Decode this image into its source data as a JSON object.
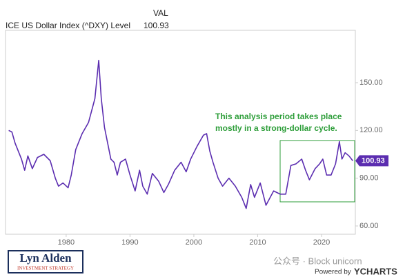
{
  "chart_data": {
    "type": "line",
    "column_label": "VAL",
    "title": "ICE US Dollar Index (^DXY) Level",
    "x": [
      1971.0,
      1971.5,
      1972.0,
      1973.0,
      1973.5,
      1974.0,
      1974.7,
      1975.5,
      1976.5,
      1977.5,
      1978.3,
      1978.8,
      1979.5,
      1980.3,
      1980.8,
      1981.5,
      1982.5,
      1983.5,
      1984.5,
      1985.1,
      1985.5,
      1986.0,
      1986.5,
      1987.0,
      1987.5,
      1988.0,
      1988.5,
      1989.3,
      1990.0,
      1990.8,
      1991.5,
      1992.0,
      1992.7,
      1993.5,
      1994.5,
      1995.3,
      1996.0,
      1997.0,
      1998.0,
      1998.8,
      1999.5,
      2000.5,
      2001.5,
      2002.0,
      2002.5,
      2003.0,
      2003.8,
      2004.5,
      2005.5,
      2006.5,
      2007.5,
      2008.2,
      2008.9,
      2009.5,
      2010.4,
      2011.3,
      2012.5,
      2013.5,
      2014.4,
      2015.2,
      2016.0,
      2016.9,
      2017.5,
      2018.1,
      2019.0,
      2019.7,
      2020.2,
      2020.8,
      2021.5,
      2022.2,
      2022.8,
      2023.2,
      2023.7,
      2024.3,
      2024.9
    ],
    "values": [
      120,
      119,
      112,
      102,
      95,
      104,
      96,
      103,
      105,
      101,
      90,
      85,
      87,
      84,
      92,
      108,
      118,
      125,
      140,
      164,
      140,
      122,
      112,
      102,
      100,
      92,
      100,
      102,
      92,
      82,
      95,
      85,
      80,
      93,
      88,
      81,
      86,
      95,
      100,
      94,
      102,
      110,
      117,
      118,
      107,
      100,
      90,
      85,
      90,
      85,
      78,
      71,
      86,
      78,
      87,
      73,
      82,
      80,
      80,
      98,
      99,
      102,
      95,
      89,
      96,
      99,
      102,
      92,
      92,
      99,
      113,
      102,
      106,
      104,
      100.93
    ],
    "color": "#5b2db0",
    "xlim": [
      1970.5,
      2025.3
    ],
    "ylim": [
      54.8,
      182.9
    ],
    "xticks": [
      1980,
      1990,
      2000,
      2010,
      2020
    ],
    "yticks": [
      {
        "value": 60,
        "label": "60.00"
      },
      {
        "value": 90,
        "label": "90.00"
      },
      {
        "value": 120,
        "label": "120.00"
      },
      {
        "value": 150,
        "label": "150.00"
      }
    ],
    "annotation": [
      "This analysis period takes place",
      "mostly in a strong-dollar cycle."
    ]
  },
  "branding": {
    "logo_name": "Lyn Alden",
    "logo_tagline": "INVESTMENT STRATEGY",
    "watermark": "公众号 · Block unicorn",
    "powered_by": "Powered by",
    "provider": "YCHARTS"
  }
}
